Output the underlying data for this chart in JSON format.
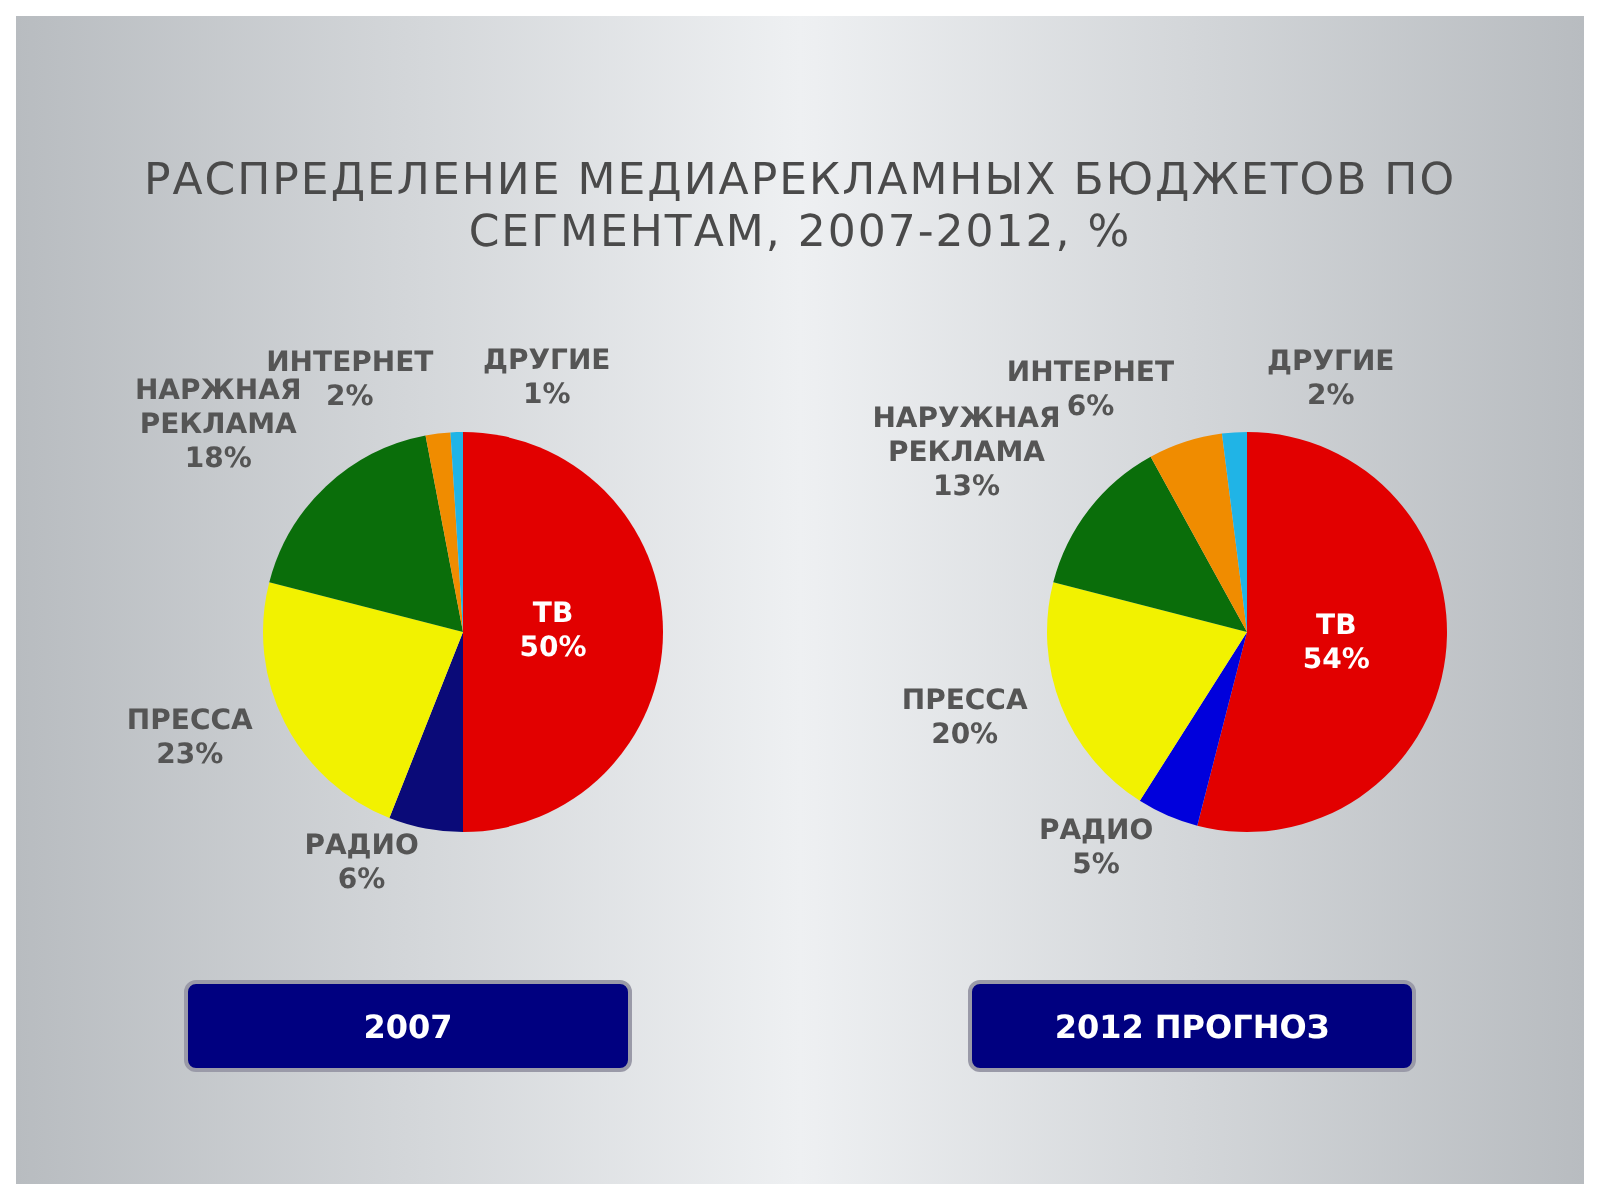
{
  "chart_data": [
    {
      "type": "pie",
      "title": "РАСПРЕДЕЛЕНИЕ МЕДИАРЕКЛАМНЫХ БЮДЖЕТОВ ПО СЕГМЕНТАМ, 2007-2012, %",
      "subtitle": "2007",
      "categories": [
        "ТВ",
        "РАДИО",
        "ПРЕССА",
        "НАРЖНАЯ РЕКЛАМА",
        "ИНТЕРНЕТ",
        "ДРУГИЕ"
      ],
      "values": [
        50,
        6,
        23,
        18,
        2,
        1
      ],
      "value_labels": [
        "50%",
        "6%",
        "23%",
        "18%",
        "2%",
        "1%"
      ],
      "colors": [
        "#e20000",
        "#0a0a78",
        "#f2f200",
        "#0a6e0a",
        "#f08c00",
        "#20b4e6"
      ],
      "legend": false
    },
    {
      "type": "pie",
      "subtitle": "2012 ПРОГНОЗ",
      "categories": [
        "ТВ",
        "РАДИО",
        "ПРЕССА",
        "НАРУЖНАЯ РЕКЛАМА",
        "ИНТЕРНЕТ",
        "ДРУГИЕ"
      ],
      "values": [
        54,
        5,
        20,
        13,
        6,
        2
      ],
      "value_labels": [
        "54%",
        "5%",
        "20%",
        "13%",
        "6%",
        "2%"
      ],
      "colors": [
        "#e20000",
        "#0000dc",
        "#f2f200",
        "#0a6e0a",
        "#f08c00",
        "#20b4e6"
      ],
      "legend": false
    }
  ]
}
